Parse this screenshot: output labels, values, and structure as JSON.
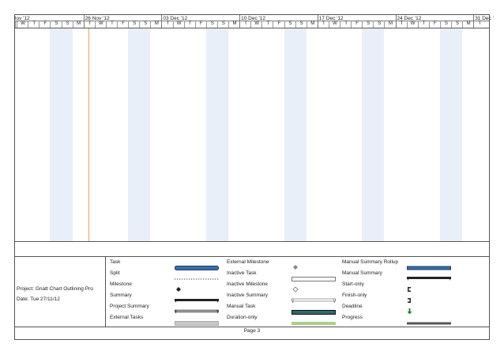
{
  "timescale": {
    "weeks": [
      "lov '12",
      "26 Nov '12",
      "03 Dec '12",
      "10 Dec '12",
      "17 Dec '12",
      "24 Dec '12",
      "31 Dec '"
    ],
    "days": [
      "T",
      "W",
      "T",
      "F",
      "S",
      "S",
      "M",
      "T",
      "W",
      "T",
      "F",
      "S",
      "S",
      "M",
      "T",
      "W",
      "T",
      "F",
      "S",
      "S",
      "M",
      "T",
      "W",
      "T",
      "F",
      "S",
      "S",
      "M",
      "T",
      "W",
      "T",
      "F",
      "S",
      "S",
      "M",
      "T",
      "W",
      "T",
      "F",
      "S",
      "S",
      "M",
      "T"
    ]
  },
  "project": {
    "name": "Project: Gnatt Chart Outlining Pro",
    "date": "Date: Tue 27/11/12"
  },
  "legend": [
    {
      "label": "Task",
      "symbol": "task-bar-icon"
    },
    {
      "label": "Split",
      "symbol": "split-dotted-icon"
    },
    {
      "label": "Milestone",
      "symbol": "milestone-diamond-icon"
    },
    {
      "label": "Summary",
      "symbol": "summary-bar-icon"
    },
    {
      "label": "Project Summary",
      "symbol": "project-summary-bar-icon"
    },
    {
      "label": "External Tasks",
      "symbol": "external-task-bar-icon"
    },
    {
      "label": "External Milestone",
      "symbol": "external-milestone-icon"
    },
    {
      "label": "Inactive Task",
      "symbol": "inactive-task-bar-icon"
    },
    {
      "label": "Inactive Milestone",
      "symbol": "inactive-milestone-icon"
    },
    {
      "label": "Inactive Summary",
      "symbol": "inactive-summary-icon"
    },
    {
      "label": "Manual Task",
      "symbol": "manual-task-bar-icon"
    },
    {
      "label": "Duration-only",
      "symbol": "duration-only-bar-icon"
    },
    {
      "label": "Manual Summary Rollup",
      "symbol": "manual-summary-rollup-icon"
    },
    {
      "label": "Manual Summary",
      "symbol": "manual-summary-icon"
    },
    {
      "label": "Start-only",
      "symbol": "start-only-icon"
    },
    {
      "label": "Finish-only",
      "symbol": "finish-only-icon"
    },
    {
      "label": "Deadline",
      "symbol": "deadline-arrow-icon"
    },
    {
      "label": "Progress",
      "symbol": "progress-bar-icon"
    }
  ],
  "footer": {
    "page": "Page 3"
  },
  "colors": {
    "weekend": "#e9eff8",
    "today": "#e8a44a",
    "task": "#3a6ea8",
    "manual_task": "#2f6a6a",
    "duration_only": "#a9d18e"
  }
}
